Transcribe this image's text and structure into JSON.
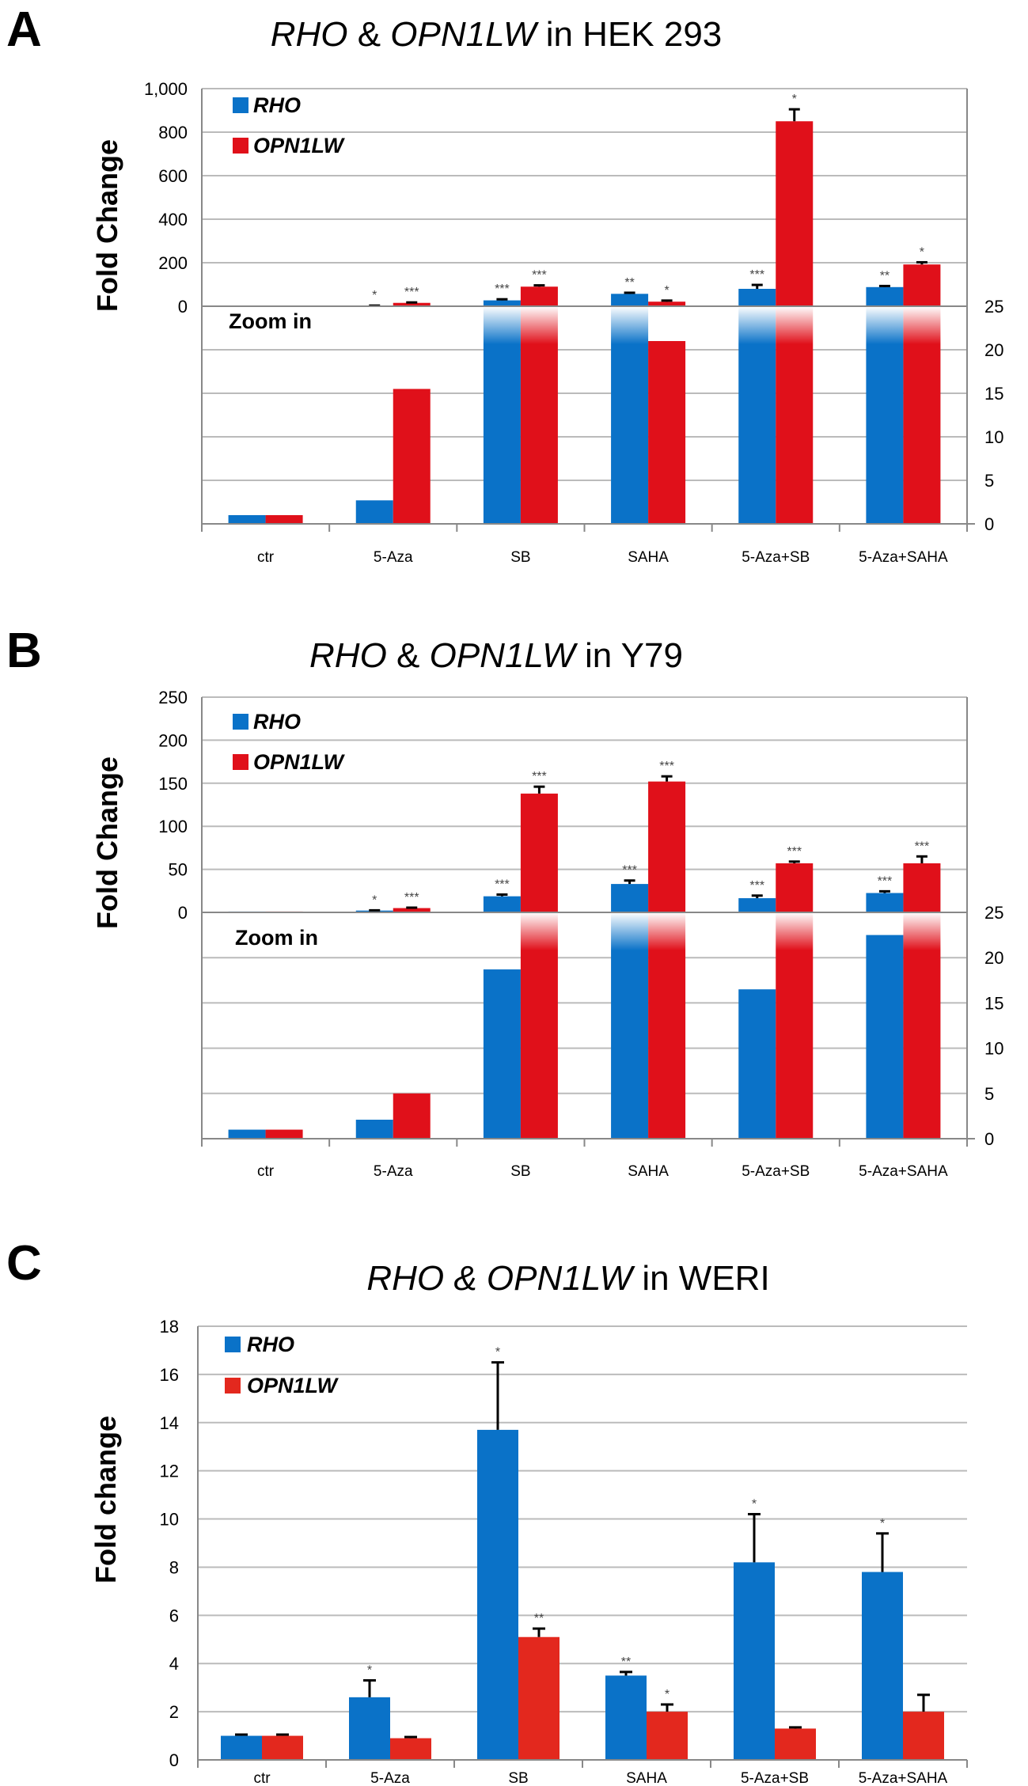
{
  "colors": {
    "rho": "#0a72c8",
    "opn1lw": "#e0101a",
    "opn1lw_c": "#e3281e"
  },
  "chart_data": [
    {
      "panel": "A",
      "type": "bar",
      "title_parts": {
        "g1": "RHO",
        "amp": " & ",
        "g2": "OPN1LW",
        "rest": " in HEK 293"
      },
      "ylabel": "Fold Change",
      "zoom_label": "Zoom in",
      "categories": [
        "ctr",
        "5-Aza",
        "SB",
        "SAHA",
        "5-Aza+SB",
        "5-Aza+SAHA"
      ],
      "upper": {
        "ylim": [
          0,
          1000
        ],
        "ticks": [
          0,
          200,
          400,
          600,
          800,
          1000
        ],
        "tick_labels": [
          "0",
          "200",
          "400",
          "600",
          "800",
          "1,000"
        ]
      },
      "lower": {
        "ylim": [
          0,
          25
        ],
        "ticks": [
          0,
          5,
          10,
          15,
          20,
          25
        ],
        "tick_labels": [
          "0",
          "5",
          "10",
          "15",
          "20",
          "25"
        ]
      },
      "series": [
        {
          "name": "RHO",
          "values": [
            1,
            2.7,
            27,
            57,
            80,
            88
          ],
          "errors": [
            0,
            0.2,
            5,
            5,
            18,
            5
          ],
          "sig": [
            "",
            "*",
            "***",
            "**",
            "***",
            "**"
          ]
        },
        {
          "name": "OPN1LW",
          "values": [
            1,
            15.5,
            90,
            21,
            850,
            192
          ],
          "errors": [
            0,
            2,
            6,
            5,
            55,
            10
          ],
          "sig": [
            "",
            "***",
            "***",
            "*",
            "*",
            "*"
          ]
        }
      ]
    },
    {
      "panel": "B",
      "type": "bar",
      "title_parts": {
        "g1": "RHO",
        "amp": " & ",
        "g2": "OPN1LW",
        "rest": " in Y79"
      },
      "ylabel": "Fold Change",
      "zoom_label": "Zoom in",
      "categories": [
        "ctr",
        "5-Aza",
        "SB",
        "SAHA",
        "5-Aza+SB",
        "5-Aza+SAHA"
      ],
      "upper": {
        "ylim": [
          0,
          250
        ],
        "ticks": [
          0,
          50,
          100,
          150,
          200,
          250
        ],
        "tick_labels": [
          "0",
          "50",
          "100",
          "150",
          "200",
          "250"
        ]
      },
      "lower": {
        "ylim": [
          0,
          25
        ],
        "ticks": [
          0,
          5,
          10,
          15,
          20,
          25
        ],
        "tick_labels": [
          "0",
          "5",
          "10",
          "15",
          "20",
          "25"
        ]
      },
      "series": [
        {
          "name": "RHO",
          "values": [
            1,
            2.1,
            18.7,
            33,
            16.5,
            22.5
          ],
          "errors": [
            0,
            0.3,
            2,
            4,
            3,
            2
          ],
          "sig": [
            "",
            "*",
            "***",
            "***",
            "***",
            "***"
          ]
        },
        {
          "name": "OPN1LW",
          "values": [
            1,
            5,
            138,
            152,
            57,
            57
          ],
          "errors": [
            0,
            0.5,
            8,
            6,
            2,
            8
          ],
          "sig": [
            "",
            "***",
            "***",
            "***",
            "***",
            "***"
          ]
        }
      ]
    },
    {
      "panel": "C",
      "type": "bar",
      "title_parts": {
        "g1": "RHO",
        "amp": " & ",
        "g2": "OPN1LW",
        "rest": " in WERI"
      },
      "ylabel": "Fold change",
      "categories": [
        "ctr",
        "5-Aza",
        "SB",
        "SAHA",
        "5-Aza+SB",
        "5-Aza+SAHA"
      ],
      "ylim": [
        0,
        18
      ],
      "ticks": [
        0,
        2,
        4,
        6,
        8,
        10,
        12,
        14,
        16,
        18
      ],
      "tick_labels": [
        "0",
        "2",
        "4",
        "6",
        "8",
        "10",
        "12",
        "14",
        "16",
        "18"
      ],
      "series": [
        {
          "name": "RHO",
          "values": [
            1.0,
            2.6,
            13.7,
            3.5,
            8.2,
            7.8
          ],
          "errors": [
            0.05,
            0.7,
            2.8,
            0.15,
            2.0,
            1.6
          ],
          "sig": [
            "",
            "*",
            "*",
            "**",
            "*",
            "*"
          ]
        },
        {
          "name": "OPN1LW",
          "values": [
            1.0,
            0.9,
            5.1,
            2.0,
            1.3,
            2.0
          ],
          "errors": [
            0.05,
            0.05,
            0.35,
            0.3,
            0.05,
            0.7
          ],
          "sig": [
            "",
            "",
            "**",
            "*",
            "",
            ""
          ]
        }
      ]
    }
  ]
}
